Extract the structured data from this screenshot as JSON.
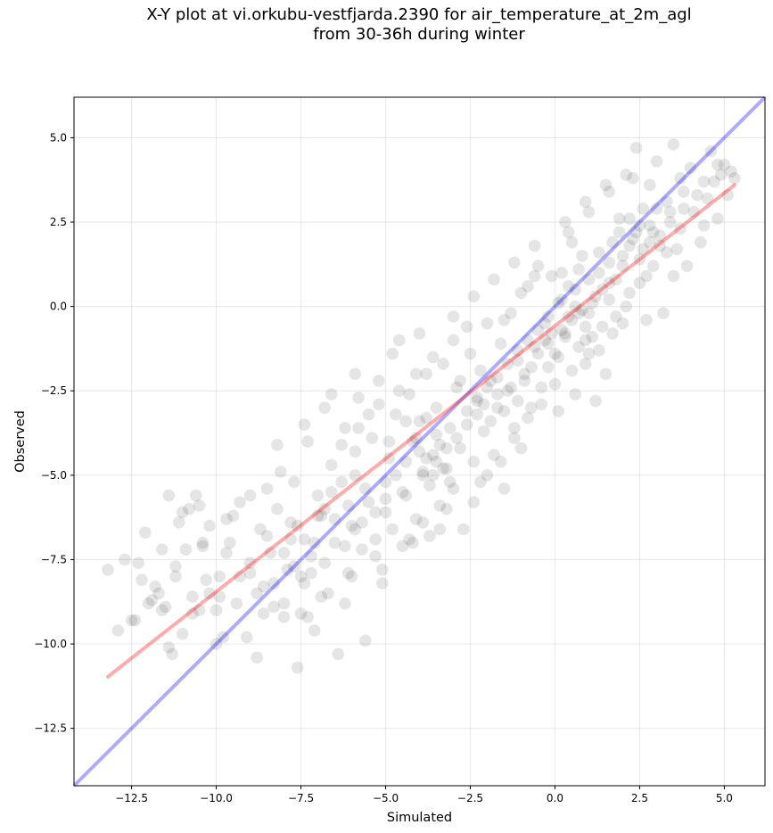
{
  "chart_data": {
    "type": "scatter",
    "title_lines": [
      "X-Y plot at vi.orkubu-vestfjarda.2390 for air_temperature_at_2m_agl",
      "from 30-36h during winter"
    ],
    "xlabel": "Simulated",
    "ylabel": "Observed",
    "xlim": [
      -14.2,
      6.2
    ],
    "ylim": [
      -14.2,
      6.2
    ],
    "x_ticks": [
      -12.5,
      -10.0,
      -7.5,
      -5.0,
      -2.5,
      0.0,
      2.5,
      5.0
    ],
    "y_ticks": [
      -12.5,
      -10.0,
      -7.5,
      -5.0,
      -2.5,
      0.0,
      2.5,
      5.0
    ],
    "x_tick_labels": [
      "−12.5",
      "−10.0",
      "−7.5",
      "−5.0",
      "−2.5",
      "0.0",
      "2.5",
      "5.0"
    ],
    "y_tick_labels": [
      "−12.5",
      "−10.0",
      "−7.5",
      "−5.0",
      "−2.5",
      "0.0",
      "2.5",
      "5.0"
    ],
    "grid": true,
    "marker_color": "#000000",
    "marker_alpha": 0.1,
    "one_to_one_line": {
      "color": "#0000ff",
      "alpha": 0.33,
      "points": [
        [
          -14.2,
          -14.2
        ],
        [
          6.2,
          6.2
        ]
      ]
    },
    "fit_line": {
      "color": "#ff0000",
      "alpha": 0.33,
      "points": [
        [
          -13.2,
          -10.97
        ],
        [
          5.3,
          3.6
        ]
      ]
    },
    "points": [
      [
        -13.2,
        -7.8
      ],
      [
        -12.9,
        -9.6
      ],
      [
        -12.7,
        -7.5
      ],
      [
        -12.5,
        -9.3
      ],
      [
        -12.3,
        -7.6
      ],
      [
        -12.2,
        -8.1
      ],
      [
        -12.1,
        -6.7
      ],
      [
        -11.9,
        -8.7
      ],
      [
        -11.7,
        -8.5
      ],
      [
        -11.6,
        -7.2
      ],
      [
        -11.5,
        -8.9
      ],
      [
        -11.4,
        -5.6
      ],
      [
        -11.3,
        -10.3
      ],
      [
        -11.2,
        -8.0
      ],
      [
        -11.1,
        -6.4
      ],
      [
        -11.0,
        -9.7
      ],
      [
        -10.9,
        -7.2
      ],
      [
        -10.8,
        -6.0
      ],
      [
        -10.7,
        -8.6
      ],
      [
        -10.6,
        -5.6
      ],
      [
        -10.5,
        -9.0
      ],
      [
        -10.4,
        -7.0
      ],
      [
        -10.3,
        -8.1
      ],
      [
        -10.2,
        -6.5
      ],
      [
        -10.0,
        -9.0
      ],
      [
        -9.9,
        -8.0
      ],
      [
        -9.8,
        -9.8
      ],
      [
        -9.6,
        -7.0
      ],
      [
        -9.5,
        -6.2
      ],
      [
        -9.4,
        -8.8
      ],
      [
        -9.3,
        -5.8
      ],
      [
        -9.1,
        -9.8
      ],
      [
        -9.0,
        -7.6
      ],
      [
        -8.8,
        -10.4
      ],
      [
        -8.7,
        -6.6
      ],
      [
        -8.6,
        -8.3
      ],
      [
        -8.5,
        -5.4
      ],
      [
        -8.4,
        -7.3
      ],
      [
        -8.3,
        -8.9
      ],
      [
        -8.2,
        -6.0
      ],
      [
        -8.1,
        -4.9
      ],
      [
        -8.0,
        -9.2
      ],
      [
        -7.9,
        -7.8
      ],
      [
        -7.8,
        -6.4
      ],
      [
        -7.7,
        -5.2
      ],
      [
        -7.6,
        -10.7
      ],
      [
        -7.5,
        -8.0
      ],
      [
        -7.4,
        -6.9
      ],
      [
        -7.3,
        -4.0
      ],
      [
        -7.2,
        -7.4
      ],
      [
        -7.1,
        -9.6
      ],
      [
        -7.0,
        -5.6
      ],
      [
        -6.9,
        -6.2
      ],
      [
        -6.8,
        -3.0
      ],
      [
        -6.7,
        -8.5
      ],
      [
        -6.6,
        -4.7
      ],
      [
        -6.5,
        -7.0
      ],
      [
        -6.4,
        -10.3
      ],
      [
        -6.3,
        -5.2
      ],
      [
        -6.2,
        -3.6
      ],
      [
        -6.1,
        -7.9
      ],
      [
        -6.0,
        -6.5
      ],
      [
        -5.9,
        -4.3
      ],
      [
        -5.8,
        -2.7
      ],
      [
        -5.7,
        -7.2
      ],
      [
        -5.6,
        -9.9
      ],
      [
        -5.5,
        -5.8
      ],
      [
        -5.4,
        -3.9
      ],
      [
        -5.3,
        -6.9
      ],
      [
        -5.2,
        -2.2
      ],
      [
        -5.1,
        -8.2
      ],
      [
        -5.0,
        -5.2
      ],
      [
        -4.9,
        -4.5
      ],
      [
        -4.8,
        -6.6
      ],
      [
        -4.7,
        -3.2
      ],
      [
        -4.6,
        -1.0
      ],
      [
        -4.5,
        -7.1
      ],
      [
        -4.4,
        -5.6
      ],
      [
        -4.3,
        -2.6
      ],
      [
        -4.2,
        -4.0
      ],
      [
        -4.1,
        -6.3
      ],
      [
        -4.0,
        -3.4
      ],
      [
        -3.9,
        -5.0
      ],
      [
        -3.8,
        -2.0
      ],
      [
        -3.7,
        -6.8
      ],
      [
        -3.6,
        -4.4
      ],
      [
        -3.5,
        -3.0
      ],
      [
        -3.4,
        -5.9
      ],
      [
        -3.3,
        -1.7
      ],
      [
        -3.2,
        -4.8
      ],
      [
        -3.1,
        -3.6
      ],
      [
        -3.0,
        -5.4
      ],
      [
        -2.9,
        -2.4
      ],
      [
        -2.8,
        -4.2
      ],
      [
        -2.7,
        -6.6
      ],
      [
        -2.6,
        -3.1
      ],
      [
        -2.5,
        -1.4
      ],
      [
        -2.4,
        -4.6
      ],
      [
        -2.3,
        -2.8
      ],
      [
        -2.2,
        -5.2
      ],
      [
        -2.1,
        -3.7
      ],
      [
        -2.0,
        -0.5
      ],
      [
        -1.9,
        -2.2
      ],
      [
        -1.8,
        -4.4
      ],
      [
        -1.7,
        -3.0
      ],
      [
        -1.6,
        -1.1
      ],
      [
        -1.5,
        -5.4
      ],
      [
        -1.4,
        -2.5
      ],
      [
        -1.3,
        -0.2
      ],
      [
        -1.2,
        -3.6
      ],
      [
        -1.1,
        -1.6
      ],
      [
        -1.0,
        -4.2
      ],
      [
        -0.9,
        -2.0
      ],
      [
        -0.8,
        0.6
      ],
      [
        -0.7,
        -3.0
      ],
      [
        -0.6,
        -1.2
      ],
      [
        -0.5,
        1.2
      ],
      [
        -0.4,
        -2.4
      ],
      [
        -0.3,
        -0.5
      ],
      [
        -0.2,
        -1.8
      ],
      [
        -0.1,
        0.9
      ],
      [
        0.0,
        -1.4
      ],
      [
        0.1,
        -3.1
      ],
      [
        0.2,
        0.2
      ],
      [
        0.3,
        -0.8
      ],
      [
        0.4,
        2.2
      ],
      [
        0.5,
        -1.9
      ],
      [
        0.6,
        0.5
      ],
      [
        0.7,
        -0.2
      ],
      [
        0.8,
        1.5
      ],
      [
        0.9,
        -1.0
      ],
      [
        1.0,
        2.8
      ],
      [
        1.1,
        0.1
      ],
      [
        1.2,
        -2.8
      ],
      [
        1.3,
        1.0
      ],
      [
        1.4,
        -0.6
      ],
      [
        1.5,
        3.6
      ],
      [
        1.6,
        0.7
      ],
      [
        1.7,
        1.9
      ],
      [
        1.8,
        -0.3
      ],
      [
        1.9,
        2.6
      ],
      [
        2.0,
        1.2
      ],
      [
        2.1,
        3.9
      ],
      [
        2.2,
        0.4
      ],
      [
        2.3,
        2.0
      ],
      [
        2.4,
        4.7
      ],
      [
        2.5,
        1.4
      ],
      [
        2.6,
        2.9
      ],
      [
        2.7,
        0.9
      ],
      [
        2.8,
        3.6
      ],
      [
        2.9,
        2.2
      ],
      [
        3.0,
        4.3
      ],
      [
        3.1,
        1.8
      ],
      [
        3.2,
        -0.2
      ],
      [
        3.3,
        3.1
      ],
      [
        3.4,
        2.5
      ],
      [
        3.5,
        4.8
      ],
      [
        3.6,
        1.7
      ],
      [
        3.7,
        3.8
      ],
      [
        3.8,
        2.9
      ],
      [
        3.9,
        1.2
      ],
      [
        4.0,
        4.1
      ],
      [
        4.2,
        3.3
      ],
      [
        4.4,
        2.4
      ],
      [
        4.6,
        4.6
      ],
      [
        4.7,
        3.7
      ],
      [
        4.8,
        2.6
      ],
      [
        5.0,
        4.2
      ],
      [
        5.1,
        3.3
      ],
      [
        5.3,
        3.8
      ],
      [
        -0.2,
        -1.1
      ],
      [
        0.1,
        -1.5
      ],
      [
        0.3,
        -0.9
      ],
      [
        0.5,
        -0.4
      ],
      [
        0.7,
        -1.2
      ],
      [
        0.9,
        -0.6
      ],
      [
        1.1,
        -0.9
      ],
      [
        0.8,
        -0.1
      ],
      [
        0.4,
        -0.3
      ],
      [
        0.2,
        -0.7
      ],
      [
        -0.1,
        -0.8
      ],
      [
        0.6,
        0.0
      ],
      [
        1.0,
        -0.2
      ],
      [
        1.2,
        0.3
      ],
      [
        1.4,
        0.5
      ],
      [
        1.6,
        0.2
      ],
      [
        1.8,
        0.8
      ],
      [
        2.0,
        1.5
      ],
      [
        2.2,
        1.8
      ],
      [
        2.4,
        2.2
      ],
      [
        2.6,
        1.7
      ],
      [
        2.8,
        2.4
      ],
      [
        3.0,
        2.9
      ],
      [
        -3.8,
        -4.5
      ],
      [
        -3.6,
        -5.0
      ],
      [
        -3.9,
        -4.9
      ],
      [
        -3.5,
        -4.6
      ],
      [
        -3.7,
        -5.3
      ],
      [
        -4.0,
        -4.3
      ],
      [
        -3.3,
        -4.8
      ],
      [
        -3.1,
        -5.2
      ],
      [
        -3.4,
        -4.1
      ],
      [
        -2.3,
        -3.2
      ],
      [
        -2.1,
        -2.9
      ],
      [
        -1.9,
        -3.4
      ],
      [
        -1.7,
        -2.6
      ],
      [
        -1.5,
        -3.1
      ],
      [
        -1.3,
        -2.4
      ],
      [
        -1.1,
        -2.8
      ],
      [
        -0.9,
        -2.2
      ],
      [
        -0.7,
        -1.8
      ],
      [
        -0.5,
        -1.4
      ],
      [
        -0.3,
        -1.0
      ],
      [
        -5.2,
        -2.9
      ],
      [
        -4.6,
        -2.5
      ],
      [
        -4.1,
        -2.0
      ],
      [
        -3.6,
        -1.5
      ],
      [
        -3.0,
        -1.0
      ],
      [
        -2.6,
        -0.6
      ],
      [
        -6.3,
        -4.1
      ],
      [
        -5.8,
        -3.6
      ],
      [
        -5.5,
        -3.2
      ],
      [
        -6.1,
        -5.9
      ],
      [
        -5.7,
        -6.4
      ],
      [
        -5.0,
        -6.1
      ],
      [
        -4.5,
        -5.5
      ],
      [
        -8.5,
        -6.8
      ],
      [
        -8.0,
        -7.3
      ],
      [
        -7.6,
        -6.5
      ],
      [
        -7.2,
        -7.9
      ],
      [
        -6.8,
        -6.0
      ],
      [
        -9.3,
        -8.0
      ],
      [
        -8.8,
        -8.5
      ],
      [
        -10.7,
        -9.1
      ],
      [
        -10.2,
        -8.5
      ],
      [
        -11.8,
        -8.3
      ],
      [
        -11.6,
        -9.0
      ],
      [
        -12.0,
        -8.8
      ],
      [
        -10.5,
        -5.9
      ],
      [
        -11.0,
        -6.1
      ],
      [
        -9.7,
        -7.3
      ],
      [
        -1.0,
        0.4
      ],
      [
        -0.6,
        0.9
      ],
      [
        0.2,
        1.0
      ],
      [
        0.5,
        1.9
      ],
      [
        -1.5,
        -0.4
      ],
      [
        -2.2,
        -1.9
      ],
      [
        -2.8,
        -2.2
      ],
      [
        -4.4,
        -3.4
      ],
      [
        -4.9,
        -4.0
      ],
      [
        -5.9,
        -5.0
      ],
      [
        -6.6,
        -5.5
      ],
      [
        -7.0,
        -6.2
      ],
      [
        -7.8,
        -6.9
      ],
      [
        -9.0,
        -7.9
      ],
      [
        -9.9,
        -8.6
      ],
      [
        1.7,
        -0.8
      ],
      [
        2.1,
        0.0
      ],
      [
        2.5,
        0.7
      ],
      [
        2.9,
        1.2
      ],
      [
        3.3,
        1.6
      ],
      [
        3.7,
        2.3
      ],
      [
        4.1,
        2.8
      ],
      [
        4.5,
        3.2
      ],
      [
        4.9,
        3.9
      ],
      [
        0.0,
        -2.3
      ],
      [
        -0.4,
        -2.9
      ],
      [
        -0.8,
        -3.3
      ],
      [
        -1.2,
        -3.9
      ],
      [
        0.9,
        -1.7
      ],
      [
        1.3,
        -1.3
      ],
      [
        1.5,
        -2.0
      ],
      [
        -2.4,
        -5.8
      ],
      [
        -2.0,
        -5.0
      ],
      [
        -1.6,
        -4.6
      ],
      [
        -3.2,
        -6.0
      ],
      [
        -3.9,
        -6.4
      ],
      [
        -4.3,
        -6.9
      ],
      [
        -5.3,
        -7.4
      ],
      [
        -6.0,
        -8.0
      ],
      [
        -6.9,
        -8.6
      ],
      [
        -7.5,
        -9.1
      ],
      [
        -3.0,
        -0.3
      ],
      [
        -2.4,
        0.3
      ],
      [
        -1.8,
        0.8
      ],
      [
        -1.2,
        1.3
      ],
      [
        -0.6,
        1.8
      ],
      [
        0.3,
        2.5
      ],
      [
        0.9,
        3.1
      ],
      [
        1.6,
        3.4
      ],
      [
        2.3,
        3.8
      ],
      [
        -8.2,
        -4.1
      ],
      [
        -7.4,
        -3.5
      ],
      [
        -6.6,
        -2.6
      ],
      [
        -5.9,
        -2.0
      ],
      [
        -4.8,
        -1.4
      ],
      [
        -4.0,
        -0.8
      ],
      [
        -9.0,
        -5.6
      ],
      [
        -9.7,
        -6.3
      ],
      [
        -10.4,
        -7.1
      ],
      [
        -11.2,
        -7.7
      ],
      [
        -12.4,
        -9.3
      ],
      [
        -11.4,
        -10.1
      ],
      [
        -10.0,
        -10.0
      ],
      [
        -7.3,
        -9.2
      ],
      [
        -6.2,
        -8.8
      ],
      [
        -5.1,
        -7.8
      ],
      [
        -4.2,
        -7.0
      ],
      [
        -3.4,
        -6.6
      ],
      [
        0.6,
        -2.6
      ],
      [
        1.0,
        -1.4
      ],
      [
        2.0,
        -0.5
      ],
      [
        2.7,
        -0.4
      ],
      [
        3.5,
        0.9
      ],
      [
        4.3,
        1.9
      ],
      [
        5.2,
        4.0
      ],
      [
        4.8,
        4.2
      ],
      [
        4.4,
        3.7
      ],
      [
        3.8,
        3.4
      ],
      [
        3.4,
        2.8
      ],
      [
        3.1,
        2.1
      ],
      [
        2.8,
        1.9
      ],
      [
        2.5,
        2.4
      ],
      [
        2.2,
        2.6
      ],
      [
        1.9,
        2.2
      ],
      [
        1.6,
        1.3
      ],
      [
        1.3,
        1.6
      ],
      [
        1.0,
        0.8
      ],
      [
        0.7,
        1.1
      ],
      [
        0.4,
        0.6
      ],
      [
        0.1,
        0.1
      ],
      [
        -0.2,
        -0.3
      ],
      [
        -0.5,
        -0.7
      ],
      [
        -0.8,
        -1.0
      ],
      [
        -1.1,
        -1.3
      ],
      [
        -1.4,
        -1.7
      ],
      [
        -1.7,
        -2.1
      ],
      [
        -2.0,
        -2.4
      ],
      [
        -2.3,
        -2.7
      ],
      [
        -2.6,
        -3.5
      ],
      [
        -2.9,
        -3.9
      ],
      [
        -3.2,
        -4.2
      ],
      [
        -3.5,
        -3.8
      ],
      [
        -3.8,
        -3.3
      ],
      [
        -4.1,
        -3.9
      ],
      [
        -4.4,
        -4.6
      ],
      [
        -4.7,
        -5.0
      ],
      [
        -5.0,
        -5.7
      ],
      [
        -5.3,
        -6.1
      ],
      [
        -5.6,
        -5.4
      ],
      [
        -5.9,
        -6.6
      ],
      [
        -6.2,
        -7.1
      ],
      [
        -6.5,
        -6.3
      ],
      [
        -6.8,
        -7.6
      ],
      [
        -7.1,
        -7.0
      ],
      [
        -7.4,
        -8.2
      ],
      [
        -7.7,
        -7.7
      ],
      [
        -8.0,
        -8.8
      ],
      [
        -8.3,
        -8.2
      ],
      [
        -8.6,
        -9.1
      ]
    ]
  }
}
